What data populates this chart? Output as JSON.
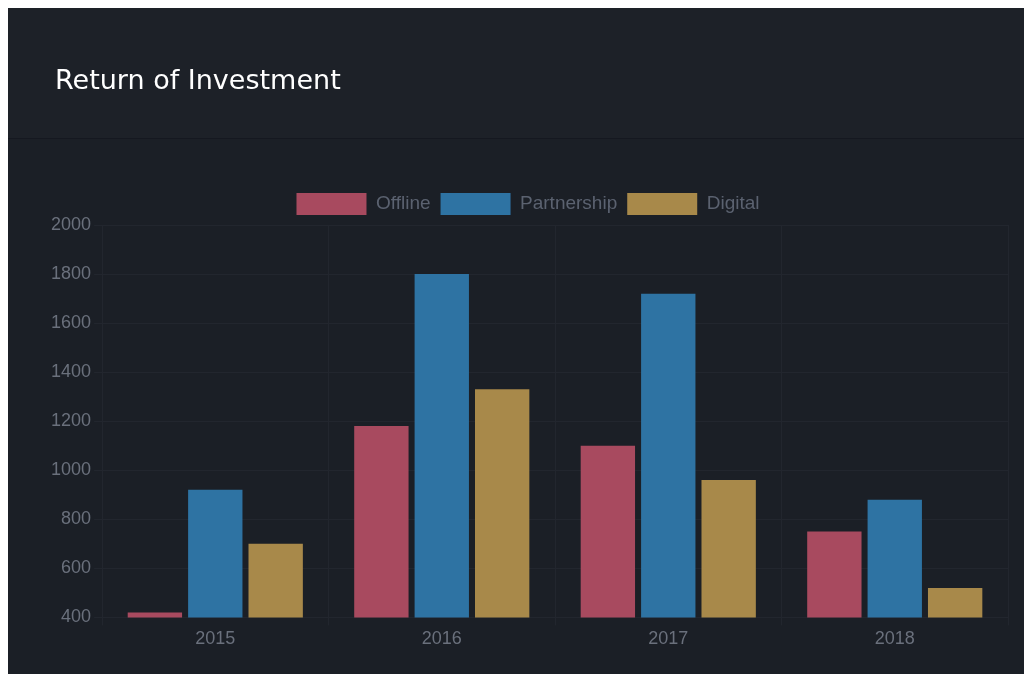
{
  "chart_data": {
    "type": "bar",
    "title": "Return of Investment",
    "categories": [
      "2015",
      "2016",
      "2017",
      "2018"
    ],
    "series": [
      {
        "name": "Offline",
        "color": "#a84a5f",
        "values": [
          420,
          1180,
          1100,
          750
        ]
      },
      {
        "name": "Partnership",
        "color": "#2e73a3",
        "values": [
          920,
          1800,
          1720,
          880
        ]
      },
      {
        "name": "Digital",
        "color": "#a8894a",
        "values": [
          700,
          1330,
          960,
          520
        ]
      }
    ],
    "ylim": [
      400,
      2000
    ],
    "yticks": [
      400,
      600,
      800,
      1000,
      1200,
      1400,
      1600,
      1800,
      2000
    ],
    "grid": true,
    "legend": "top"
  }
}
